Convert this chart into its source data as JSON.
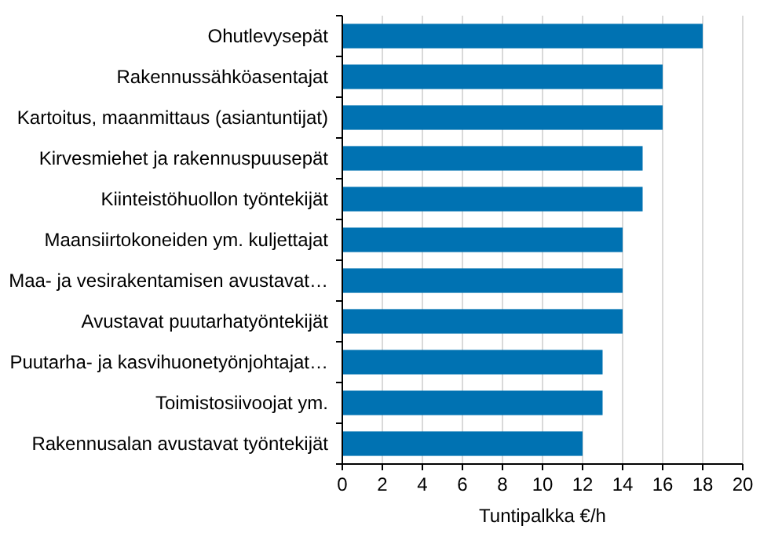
{
  "chart_data": {
    "type": "bar",
    "orientation": "horizontal",
    "xlabel": "Tuntipalkka €/h",
    "categories": [
      "Ohutlevysepät",
      "Rakennussähköasentajat",
      "Kartoitus, maanmittaus (asiantuntijat)",
      "Kirvesmiehet ja rakennuspuusepät",
      "Kiinteistöhuollon työntekijät",
      "Maansiirtokoneiden ym. kuljettajat",
      "Maa- ja vesirakentamisen avustavat…",
      "Avustavat puutarhatyöntekijät",
      "Puutarha- ja kasvihuonetyönjohtajat…",
      "Toimistosiivoojat ym.",
      "Rakennusalan avustavat työntekijät"
    ],
    "values": [
      18,
      16,
      16,
      15,
      15,
      14,
      14,
      14,
      13,
      13,
      12
    ],
    "color": "#0072b2",
    "xlim": [
      0,
      20
    ],
    "xticks": [
      0,
      2,
      4,
      6,
      8,
      10,
      12,
      14,
      16,
      18,
      20
    ],
    "grid": "x"
  }
}
